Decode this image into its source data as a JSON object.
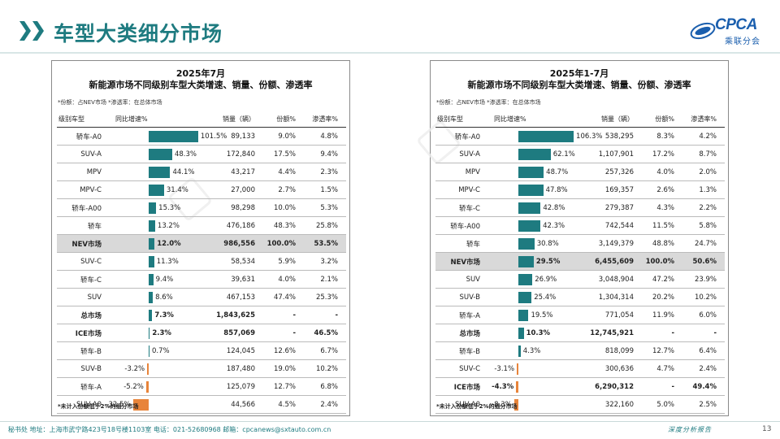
{
  "page": {
    "title": "车型大类细分市场",
    "footer_left": "秘书处  地址：上海市武宁路423号18号楼1103室  电话：021-52680968  邮箱：cpcanews@sxtauto.com.cn",
    "footer_right": "深度分析报告",
    "page_number": "13"
  },
  "logo": {
    "text": "CPCA",
    "sub": "乘联分会"
  },
  "colors": {
    "accent": "#1e7b80",
    "positive_bar": "#1e7b80",
    "negative_bar": "#e8843a",
    "highlight_row": "#d9d9d9"
  },
  "left_panel": {
    "title_line1": "2025年7月",
    "title_line2": "新能源市场不同级别车型大类增速、销量、份额、渗透率",
    "note": "*份额：占NEV市场   *渗透率：在总体市场",
    "footnote": "*未计入份额低于2%的细分市场",
    "headers": {
      "name": "级别车型",
      "growth": "同比增速%",
      "sales": "销量（辆）",
      "share": "份额%",
      "pen": "渗透率%"
    },
    "rows": [
      {
        "name": "轿车-A0",
        "growth_label": "101.5%",
        "growth": 101.5,
        "sales": "89,133",
        "share": "9.0%",
        "pen": "4.8%",
        "style": ""
      },
      {
        "name": "SUV-A",
        "growth_label": "48.3%",
        "growth": 48.3,
        "sales": "172,840",
        "share": "17.5%",
        "pen": "9.4%",
        "style": ""
      },
      {
        "name": "MPV",
        "growth_label": "44.1%",
        "growth": 44.1,
        "sales": "43,217",
        "share": "4.4%",
        "pen": "2.3%",
        "style": ""
      },
      {
        "name": "MPV-C",
        "growth_label": "31.4%",
        "growth": 31.4,
        "sales": "27,000",
        "share": "2.7%",
        "pen": "1.5%",
        "style": ""
      },
      {
        "name": "轿车-A00",
        "growth_label": "15.3%",
        "growth": 15.3,
        "sales": "98,298",
        "share": "10.0%",
        "pen": "5.3%",
        "style": ""
      },
      {
        "name": "轿车",
        "growth_label": "13.2%",
        "growth": 13.2,
        "sales": "476,186",
        "share": "48.3%",
        "pen": "25.8%",
        "style": ""
      },
      {
        "name": "NEV市场",
        "growth_label": "12.0%",
        "growth": 12.0,
        "sales": "986,556",
        "share": "100.0%",
        "pen": "53.5%",
        "style": "hl"
      },
      {
        "name": "SUV-C",
        "growth_label": "11.3%",
        "growth": 11.3,
        "sales": "58,534",
        "share": "5.9%",
        "pen": "3.2%",
        "style": ""
      },
      {
        "name": "轿车-C",
        "growth_label": "9.4%",
        "growth": 9.4,
        "sales": "39,631",
        "share": "4.0%",
        "pen": "2.1%",
        "style": ""
      },
      {
        "name": "SUV",
        "growth_label": "8.6%",
        "growth": 8.6,
        "sales": "467,153",
        "share": "47.4%",
        "pen": "25.3%",
        "style": ""
      },
      {
        "name": "总市场",
        "growth_label": "7.3%",
        "growth": 7.3,
        "sales": "1,843,625",
        "share": "-",
        "pen": "-",
        "style": "bold"
      },
      {
        "name": "ICE市场",
        "growth_label": "2.3%",
        "growth": 2.3,
        "sales": "857,069",
        "share": "-",
        "pen": "46.5%",
        "style": "bold"
      },
      {
        "name": "轿车-B",
        "growth_label": "0.7%",
        "growth": 0.7,
        "sales": "124,045",
        "share": "12.6%",
        "pen": "6.7%",
        "style": ""
      },
      {
        "name": "SUV-B",
        "growth_label": "-3.2%",
        "growth": -3.2,
        "sales": "187,480",
        "share": "19.0%",
        "pen": "10.2%",
        "style": ""
      },
      {
        "name": "轿车-A",
        "growth_label": "-5.2%",
        "growth": -5.2,
        "sales": "125,079",
        "share": "12.7%",
        "pen": "6.8%",
        "style": ""
      },
      {
        "name": "SUV-A0",
        "growth_label": "-32.5%",
        "growth": -32.5,
        "sales": "44,566",
        "share": "4.5%",
        "pen": "2.4%",
        "style": ""
      }
    ]
  },
  "right_panel": {
    "title_line1": "2025年1-7月",
    "title_line2": "新能源市场不同级别车型大类增速、销量、份额、渗透率",
    "note": "*份额：占NEV市场   *渗透率：在总体市场",
    "footnote": "*未计入份额低于2%的细分市场",
    "headers": {
      "name": "级别车型",
      "growth": "同比增速%",
      "sales": "销量（辆）",
      "share": "份额%",
      "pen": "渗透率%"
    },
    "rows": [
      {
        "name": "轿车-A0",
        "growth_label": "106.3%",
        "growth": 106.3,
        "sales": "538,295",
        "share": "8.3%",
        "pen": "4.2%",
        "style": ""
      },
      {
        "name": "SUV-A",
        "growth_label": "62.1%",
        "growth": 62.1,
        "sales": "1,107,901",
        "share": "17.2%",
        "pen": "8.7%",
        "style": ""
      },
      {
        "name": "MPV",
        "growth_label": "48.7%",
        "growth": 48.7,
        "sales": "257,326",
        "share": "4.0%",
        "pen": "2.0%",
        "style": ""
      },
      {
        "name": "MPV-C",
        "growth_label": "47.8%",
        "growth": 47.8,
        "sales": "169,357",
        "share": "2.6%",
        "pen": "1.3%",
        "style": ""
      },
      {
        "name": "轿车-C",
        "growth_label": "42.8%",
        "growth": 42.8,
        "sales": "279,387",
        "share": "4.3%",
        "pen": "2.2%",
        "style": ""
      },
      {
        "name": "轿车-A00",
        "growth_label": "42.3%",
        "growth": 42.3,
        "sales": "742,544",
        "share": "11.5%",
        "pen": "5.8%",
        "style": ""
      },
      {
        "name": "轿车",
        "growth_label": "30.8%",
        "growth": 30.8,
        "sales": "3,149,379",
        "share": "48.8%",
        "pen": "24.7%",
        "style": ""
      },
      {
        "name": "NEV市场",
        "growth_label": "29.5%",
        "growth": 29.5,
        "sales": "6,455,609",
        "share": "100.0%",
        "pen": "50.6%",
        "style": "hl"
      },
      {
        "name": "SUV",
        "growth_label": "26.9%",
        "growth": 26.9,
        "sales": "3,048,904",
        "share": "47.2%",
        "pen": "23.9%",
        "style": ""
      },
      {
        "name": "SUV-B",
        "growth_label": "25.4%",
        "growth": 25.4,
        "sales": "1,304,314",
        "share": "20.2%",
        "pen": "10.2%",
        "style": ""
      },
      {
        "name": "轿车-A",
        "growth_label": "19.5%",
        "growth": 19.5,
        "sales": "771,054",
        "share": "11.9%",
        "pen": "6.0%",
        "style": ""
      },
      {
        "name": "总市场",
        "growth_label": "10.3%",
        "growth": 10.3,
        "sales": "12,745,921",
        "share": "-",
        "pen": "-",
        "style": "bold"
      },
      {
        "name": "轿车-B",
        "growth_label": "4.3%",
        "growth": 4.3,
        "sales": "818,099",
        "share": "12.7%",
        "pen": "6.4%",
        "style": ""
      },
      {
        "name": "SUV-C",
        "growth_label": "-3.1%",
        "growth": -3.1,
        "sales": "300,636",
        "share": "4.7%",
        "pen": "2.4%",
        "style": ""
      },
      {
        "name": "ICE市场",
        "growth_label": "-4.3%",
        "growth": -4.3,
        "sales": "6,290,312",
        "share": "-",
        "pen": "49.4%",
        "style": "bold"
      },
      {
        "name": "SUV-A0",
        "growth_label": "-8.3%",
        "growth": -8.3,
        "sales": "322,160",
        "share": "5.0%",
        "pen": "2.5%",
        "style": ""
      }
    ]
  },
  "chart_data": [
    {
      "type": "table",
      "title": "2025年7月 新能源市场不同级别车型大类增速、销量、份额、渗透率",
      "columns": [
        "级别车型",
        "同比增速%",
        "销量（辆）",
        "份额%",
        "渗透率%"
      ],
      "categories": [
        "轿车-A0",
        "SUV-A",
        "MPV",
        "MPV-C",
        "轿车-A00",
        "轿车",
        "NEV市场",
        "SUV-C",
        "轿车-C",
        "SUV",
        "总市场",
        "ICE市场",
        "轿车-B",
        "SUV-B",
        "轿车-A",
        "SUV-A0"
      ],
      "series": [
        {
          "name": "同比增速%",
          "values": [
            101.5,
            48.3,
            44.1,
            31.4,
            15.3,
            13.2,
            12.0,
            11.3,
            9.4,
            8.6,
            7.3,
            2.3,
            0.7,
            -3.2,
            -5.2,
            -32.5
          ]
        }
      ]
    },
    {
      "type": "table",
      "title": "2025年1-7月 新能源市场不同级别车型大类增速、销量、份额、渗透率",
      "columns": [
        "级别车型",
        "同比增速%",
        "销量（辆）",
        "份额%",
        "渗透率%"
      ],
      "categories": [
        "轿车-A0",
        "SUV-A",
        "MPV",
        "MPV-C",
        "轿车-C",
        "轿车-A00",
        "轿车",
        "NEV市场",
        "SUV",
        "SUV-B",
        "轿车-A",
        "总市场",
        "轿车-B",
        "SUV-C",
        "ICE市场",
        "SUV-A0"
      ],
      "series": [
        {
          "name": "同比增速%",
          "values": [
            106.3,
            62.1,
            48.7,
            47.8,
            42.8,
            42.3,
            30.8,
            29.5,
            26.9,
            25.4,
            19.5,
            10.3,
            4.3,
            -3.1,
            -4.3,
            -8.3
          ]
        }
      ]
    }
  ]
}
